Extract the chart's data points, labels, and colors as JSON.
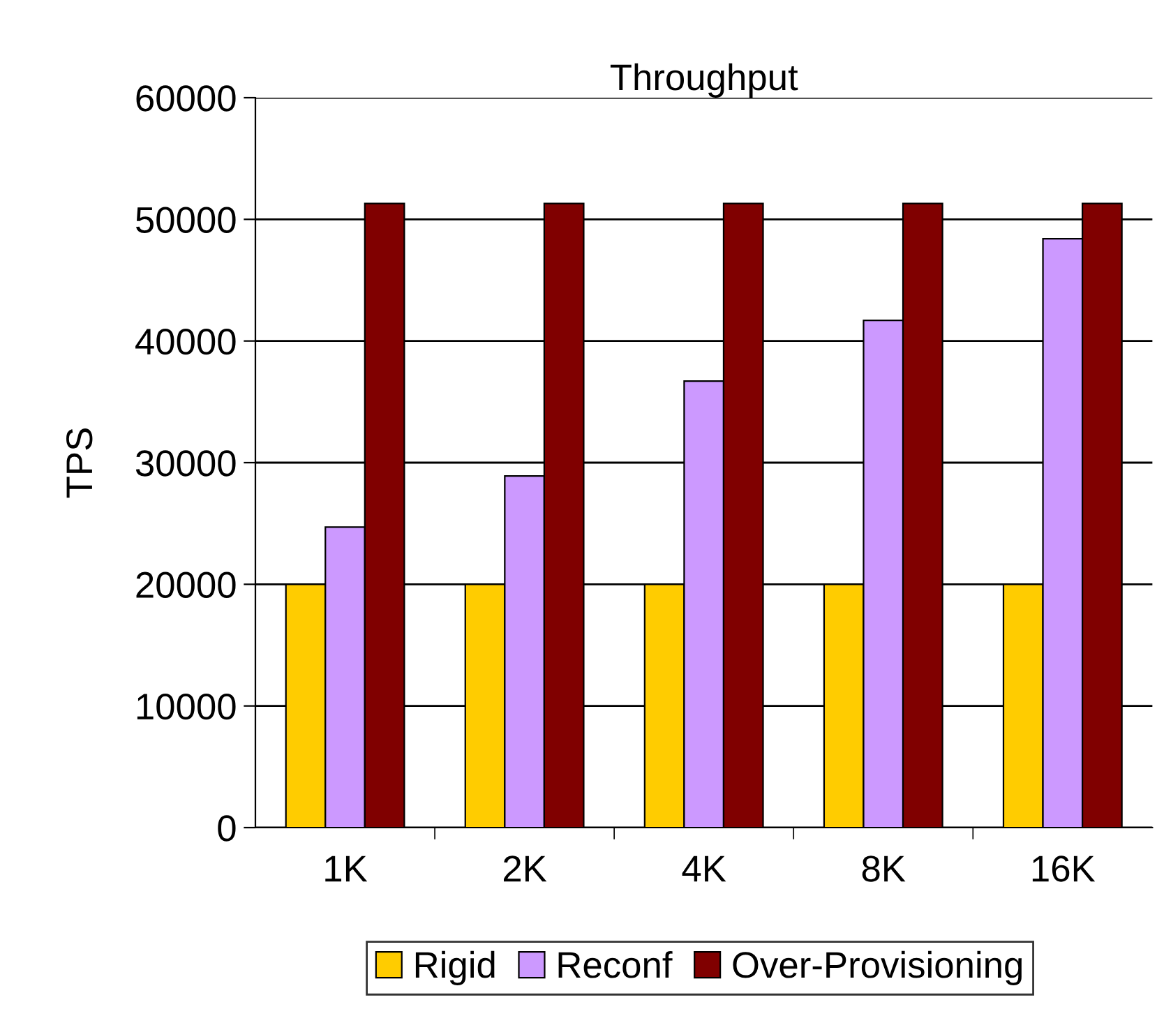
{
  "chart_data": {
    "type": "bar",
    "title": "Throughput",
    "ylabel": "TPS",
    "categories": [
      "1K",
      "2K",
      "4K",
      "8K",
      "16K"
    ],
    "series": [
      {
        "name": "Rigid",
        "color": "#ffcc00",
        "values": [
          20000,
          20000,
          20000,
          20000,
          20000
        ]
      },
      {
        "name": "Reconf",
        "color": "#cc99ff",
        "values": [
          24700,
          28900,
          36700,
          41700,
          48400
        ]
      },
      {
        "name": "Over-Provisioning",
        "color": "#800000",
        "values": [
          51300,
          51300,
          51300,
          51300,
          51300
        ]
      }
    ],
    "ylim": [
      0,
      60000
    ],
    "yticks": [
      0,
      10000,
      20000,
      30000,
      40000,
      50000,
      60000
    ],
    "grid": "y",
    "legend": "bottom"
  }
}
